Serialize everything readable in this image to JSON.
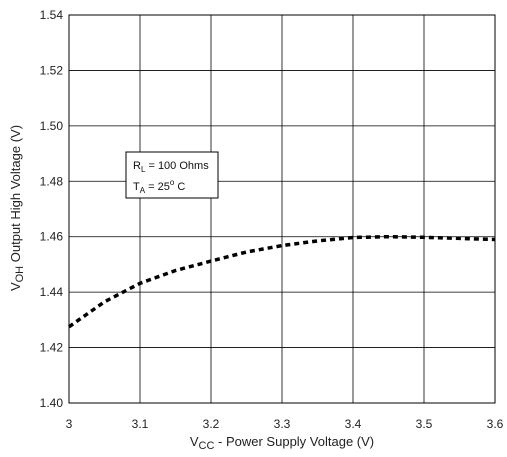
{
  "chart_data": {
    "type": "line",
    "xlabel": {
      "main": "V",
      "sub": "CC",
      "rest": " - Power Supply Voltage (V)"
    },
    "ylabel": {
      "main": "V",
      "sub": "OH",
      "rest": " Output High Voltage (V)"
    },
    "xlim": [
      3.0,
      3.6
    ],
    "ylim": [
      1.4,
      1.54
    ],
    "xticks": [
      "3",
      "3.1",
      "3.2",
      "3.3",
      "3.4",
      "3.5",
      "3.6"
    ],
    "yticks": [
      "1.40",
      "1.42",
      "1.44",
      "1.46",
      "1.48",
      "1.50",
      "1.52",
      "1.54"
    ],
    "grid": true,
    "line_style": "dashed",
    "line_color": "#000000",
    "series": [
      {
        "x": [
          3.0,
          3.05,
          3.1,
          3.15,
          3.2,
          3.25,
          3.3,
          3.35,
          3.4,
          3.45,
          3.5,
          3.55,
          3.6
        ],
        "y": [
          1.4275,
          1.4365,
          1.4432,
          1.4478,
          1.4512,
          1.4545,
          1.4568,
          1.4585,
          1.4597,
          1.46,
          1.4598,
          1.4594,
          1.459
        ]
      }
    ],
    "annotation": {
      "line1": {
        "main": "R",
        "sub": "L",
        "rest": " = 100 Ohms"
      },
      "line2": {
        "main": "T",
        "sub": "A",
        "rest": " = 25",
        "sup": "o",
        "tail": " C"
      }
    }
  }
}
